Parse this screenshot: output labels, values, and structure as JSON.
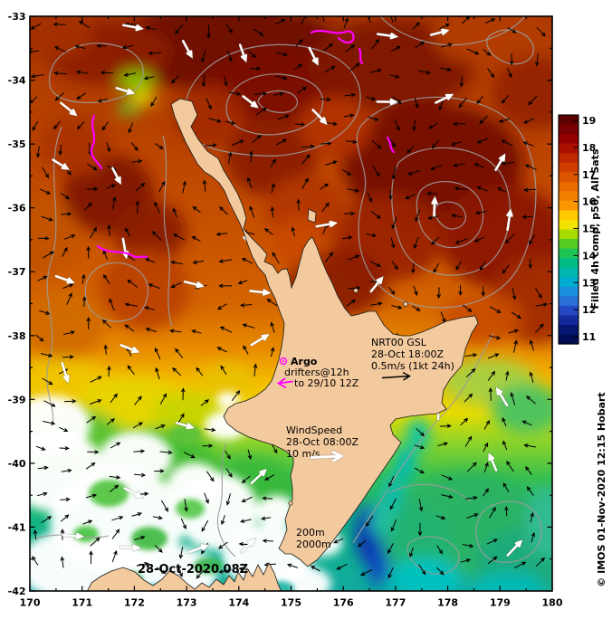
{
  "figure": {
    "date_label": "28-Oct-2020 08Z",
    "credit": "© IMOS 01-Nov-2020 12:15 Hobart",
    "background": "#ffffff"
  },
  "axes": {
    "x_ticks": [
      "170",
      "171",
      "172",
      "173",
      "174",
      "175",
      "176",
      "177",
      "178",
      "179",
      "180"
    ],
    "y_ticks": [
      "-33",
      "-34",
      "-35",
      "-36",
      "-37",
      "-38",
      "-39",
      "-40",
      "-41",
      "-42"
    ]
  },
  "colorbar": {
    "title": "Filled 4h comp, p50, All Sats",
    "title_color": "#0000cc",
    "tick_labels": [
      "19",
      "18",
      "17",
      "16",
      "15",
      "14",
      "13",
      "12",
      "11"
    ],
    "band_colors": [
      "#5c0000",
      "#780000",
      "#940000",
      "#ac1000",
      "#c02800",
      "#d03e00",
      "#de5400",
      "#ea6a00",
      "#f48000",
      "#fc9600",
      "#ffc800",
      "#f2e200",
      "#a8dc00",
      "#58cc24",
      "#20c454",
      "#00bc84",
      "#00b8b0",
      "#00acd0",
      "#1890dc",
      "#2a70d8",
      "#2448c4",
      "#142a9c",
      "#041670",
      "#000c54"
    ]
  },
  "legend": {
    "argo": {
      "name": "Argo",
      "line1": "drifters@12h",
      "line2": "to 29/10 12Z",
      "color": "#ff00ff"
    },
    "gsl": {
      "line1": "NRT00 GSL",
      "line2": "28-Oct 18:00Z",
      "line3": "0.5m/s (1kt 24h)",
      "arrow_color": "#000000"
    },
    "wind": {
      "line1": "WindSpeed",
      "line2": "28-Oct 08:00Z",
      "line3": "10 m/s",
      "arrow_color": "#ffffff"
    },
    "isobaths": {
      "line1": "200m",
      "line2": "2000m"
    }
  },
  "chart_data": {
    "type": "heatmap",
    "x_axis": {
      "range": [
        170,
        180
      ],
      "ticks": [
        170,
        171,
        172,
        173,
        174,
        175,
        176,
        177,
        178,
        179,
        180
      ]
    },
    "y_axis": {
      "range": [
        -42,
        -33
      ],
      "ticks": [
        -33,
        -34,
        -35,
        -36,
        -37,
        -38,
        -39,
        -40,
        -41,
        -42
      ]
    },
    "colorbar": {
      "label": "Filled 4h comp, p50, All Sats",
      "range_c": [
        11,
        19
      ],
      "tick_values": [
        19,
        18,
        17,
        16,
        15,
        14,
        13,
        12,
        11
      ]
    },
    "overlays": [
      "grey sea-level contours",
      "black current vectors (NRT00 GSL 0.5m/s = 1kt 24h)",
      "white wind vectors (10 m/s)",
      "magenta Argo drifter tracks @12h to 29/10 12Z",
      "200m & 2000m isobaths"
    ]
  }
}
